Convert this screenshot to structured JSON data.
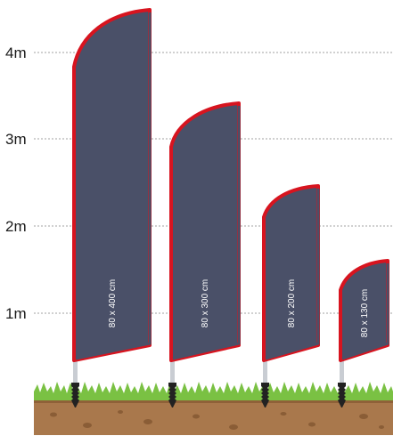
{
  "scale": {
    "marks": [
      {
        "label": "4m"
      },
      {
        "label": "3m"
      },
      {
        "label": "2m"
      },
      {
        "label": "1m"
      }
    ]
  },
  "flags": [
    {
      "size_label": "80 x 400 cm"
    },
    {
      "size_label": "80 x 300 cm"
    },
    {
      "size_label": "80 x 200 cm"
    },
    {
      "size_label": "80 x 130 cm"
    }
  ],
  "colors": {
    "flag_fill": "#4a5068",
    "flag_edge": "#d7141f",
    "pole": "#c9cdd3",
    "spike": "#222222",
    "grass": "#7ac143",
    "soil": "#a9784c",
    "gridline": "#a0a0a0"
  }
}
